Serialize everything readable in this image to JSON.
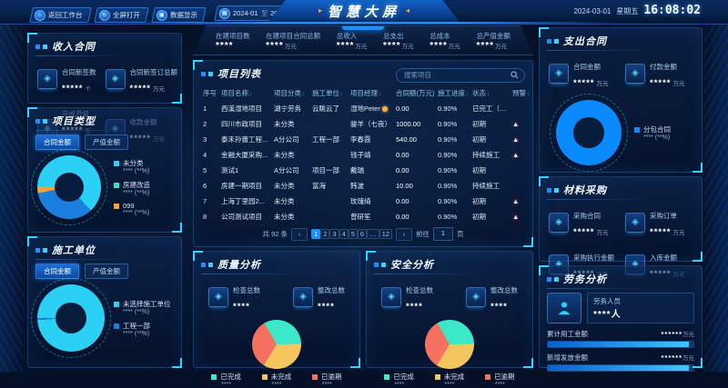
{
  "header": {
    "buttons": [
      {
        "label": "返回工作台",
        "glyph": "⌂"
      },
      {
        "label": "全屏打开",
        "glyph": "↻"
      },
      {
        "label": "数据显示",
        "glyph": "▣"
      }
    ],
    "date_range": {
      "glyph": "▦",
      "start": "2024-01",
      "separator": "至",
      "end": "2024-03"
    },
    "title": "智慧大屏",
    "title_arrow_left": "▸",
    "title_arrow_right": "◂",
    "clock": {
      "date": "2024-03-01",
      "weekday": "星期五",
      "time": "16:08:02"
    }
  },
  "kpis": [
    {
      "label": "在建项目数",
      "value": "****",
      "unit": ""
    },
    {
      "label": "在建项目合同总额",
      "value": "****",
      "unit": "万元"
    },
    {
      "label": "总收入",
      "value": "****",
      "unit": "万元"
    },
    {
      "label": "总支出",
      "value": "****",
      "unit": "万元"
    },
    {
      "label": "总成本",
      "value": "****",
      "unit": "万元"
    },
    {
      "label": "总产值金额",
      "value": "****",
      "unit": "万元"
    }
  ],
  "left": {
    "income": {
      "title": "收入合同",
      "cards": [
        {
          "glyph": "◈",
          "label": "合同新签数",
          "value": "*****",
          "unit": "个"
        },
        {
          "glyph": "◈",
          "label": "合同新签订总额",
          "value": "*****",
          "unit": "万元"
        },
        {
          "glyph": "◈",
          "label": "完成产值",
          "value": "*****",
          "unit": "万元"
        },
        {
          "glyph": "◈",
          "label": "收款金额",
          "value": "*****",
          "unit": "万元"
        }
      ]
    },
    "project_type": {
      "title": "项目类型",
      "tabs": [
        {
          "label": "合同金额",
          "active": true
        },
        {
          "label": "产值金额"
        }
      ],
      "donut": {
        "from": -90,
        "slices": [
          {
            "color": "#2bd0f5",
            "pct": 63
          },
          {
            "color": "#1b7fe0",
            "pct": 34
          },
          {
            "color": "#f0a43c",
            "pct": 3
          }
        ]
      },
      "legend": [
        {
          "label": "未分类",
          "value": "****",
          "pct": "(**%)",
          "color": "#2bd0f5"
        },
        {
          "label": "房建改造",
          "value": "****",
          "pct": "(**%)",
          "color": "#36e2c4"
        },
        {
          "label": "099",
          "value": "****",
          "pct": "(**%)",
          "color": "#f0a43c"
        }
      ]
    },
    "construction_unit": {
      "title": "施工单位",
      "tabs": [
        {
          "label": "合同金额",
          "active": true
        },
        {
          "label": "产值金额"
        }
      ],
      "donut": {
        "from": -90,
        "slices": [
          {
            "color": "#2bd0f5",
            "pct": 99
          },
          {
            "color": "#1b7fe0",
            "pct": 1
          }
        ]
      },
      "legend": [
        {
          "label": "未选择施工单位",
          "value": "****",
          "pct": "(**%)",
          "color": "#2bd0f5"
        },
        {
          "label": "工程一部",
          "value": "****",
          "pct": "(**%)",
          "color": "#1b7fe0"
        }
      ]
    }
  },
  "project_list": {
    "title": "项目列表",
    "search_placeholder": "搜索项目",
    "columns": [
      {
        "label": "序号",
        "sort": ""
      },
      {
        "label": "项目名称",
        "sort": "↕"
      },
      {
        "label": "项目分类",
        "sort": "↕"
      },
      {
        "label": "施工单位",
        "sort": "↕"
      },
      {
        "label": "项目经理",
        "sort": "↕"
      },
      {
        "label": "合同额(万元)",
        "sort": "↕"
      },
      {
        "label": "施工进度",
        "sort": "↕"
      },
      {
        "label": "状态",
        "sort": "↕"
      },
      {
        "label": "预警",
        "sort": "↕"
      }
    ],
    "rows": [
      {
        "idx": "1",
        "name": "西溪湿地项目",
        "category": "湖宁劳务",
        "unit": "云眺云了",
        "manager": "湿地Peter",
        "has_badge": true,
        "amount": "0.00",
        "progress": "0.90%",
        "status": "已完工（质保...",
        "warning": ""
      },
      {
        "idx": "2",
        "name": "四川市政项目",
        "category": "未分类",
        "unit": "",
        "manager": "骏羊（七夜）",
        "has_badge": false,
        "amount": "1000.00",
        "progress": "0.90%",
        "status": "初期",
        "warning": "▲"
      },
      {
        "idx": "3",
        "name": "泰禾孙蕾工程...",
        "category": "A分公司",
        "unit": "工程一部",
        "manager": "李春霞",
        "has_badge": false,
        "amount": "540.00",
        "progress": "0.90%",
        "status": "初期",
        "warning": "▲"
      },
      {
        "idx": "4",
        "name": "金融大厦采购...",
        "category": "未分类",
        "unit": "",
        "manager": "钱子靖",
        "has_badge": false,
        "amount": "0.00",
        "progress": "0.90%",
        "status": "持续施工",
        "warning": "▲"
      },
      {
        "idx": "5",
        "name": "测试1",
        "category": "A分公司",
        "unit": "项目一部",
        "manager": "戴瑞",
        "has_badge": false,
        "amount": "0.00",
        "progress": "0.90%",
        "status": "初期",
        "warning": ""
      },
      {
        "idx": "6",
        "name": "房建一期项目",
        "category": "未分类",
        "unit": "富海",
        "manager": "韩波",
        "has_badge": false,
        "amount": "10.00",
        "progress": "0.90%",
        "status": "持续施工",
        "warning": ""
      },
      {
        "idx": "7",
        "name": "上海丁里园2...",
        "category": "未分类",
        "unit": "",
        "manager": "玫瑰绮",
        "has_badge": false,
        "amount": "0.00",
        "progress": "0.90%",
        "status": "初期",
        "warning": "▲"
      },
      {
        "idx": "8",
        "name": "公司测试项目",
        "category": "未分类",
        "unit": "",
        "manager": "曾研笙",
        "has_badge": false,
        "amount": "0.00",
        "progress": "0.90%",
        "status": "初期",
        "warning": "▲"
      }
    ],
    "pagination": {
      "total": "共 92 条",
      "prev": "‹",
      "next": "›",
      "goto_label": "前往",
      "page_label": "页",
      "goto_value": "1",
      "pages": [
        {
          "label": "1",
          "current": true
        },
        {
          "label": "2"
        },
        {
          "label": "3"
        },
        {
          "label": "4"
        },
        {
          "label": "5"
        },
        {
          "label": "6"
        },
        {
          "label": "…"
        },
        {
          "label": "12"
        }
      ]
    }
  },
  "quality": {
    "title": "质量分析",
    "cards": [
      {
        "glyph": "◈",
        "label": "检查总数",
        "value": "****"
      },
      {
        "glyph": "◈",
        "label": "整改总数",
        "value": "****"
      }
    ],
    "pie": {
      "from": -30,
      "slices": [
        {
          "color": "#3be8c8",
          "pct": 33
        },
        {
          "color": "#f5c65d",
          "pct": 34
        },
        {
          "color": "#f5705f",
          "pct": 33
        }
      ]
    },
    "legend": [
      {
        "label": "已完成",
        "value": "****",
        "color": "#3be8c8"
      },
      {
        "label": "未完成",
        "value": "****",
        "color": "#f5c65d"
      },
      {
        "label": "已逾期",
        "value": "****",
        "color": "#f5705f"
      }
    ]
  },
  "safety": {
    "title": "安全分析",
    "cards": [
      {
        "glyph": "◈",
        "label": "检查总数",
        "value": "****"
      },
      {
        "glyph": "◈",
        "label": "整改总数",
        "value": "****"
      }
    ],
    "pie": {
      "from": -30,
      "slices": [
        {
          "color": "#3be8c8",
          "pct": 33
        },
        {
          "color": "#f5c65d",
          "pct": 34
        },
        {
          "color": "#f5705f",
          "pct": 33
        }
      ]
    },
    "legend": [
      {
        "label": "已完成",
        "value": "****",
        "color": "#3be8c8"
      },
      {
        "label": "未完成",
        "value": "****",
        "color": "#f5c65d"
      },
      {
        "label": "已逾期",
        "value": "****",
        "color": "#f5705f"
      }
    ]
  },
  "right": {
    "expense": {
      "title": "支出合同",
      "cards": [
        {
          "glyph": "◈",
          "label": "合同金额",
          "value": "*****",
          "unit": "万元"
        },
        {
          "glyph": "◈",
          "label": "付款金额",
          "value": "*****",
          "unit": "万元"
        }
      ],
      "donut": {
        "from": -90,
        "slices": [
          {
            "color": "#0a8aff",
            "pct": 100
          }
        ]
      },
      "legend": [
        {
          "label": "分包合同",
          "value": "****",
          "pct": "(**%)",
          "color": "#0a8aff"
        }
      ]
    },
    "material": {
      "title": "材料采购",
      "cards": [
        {
          "glyph": "◈",
          "label": "采购合同",
          "value": "*****",
          "unit": "万元"
        },
        {
          "glyph": "◈",
          "label": "采购订单",
          "value": "*****",
          "unit": "万元"
        },
        {
          "glyph": "◈",
          "label": "采购执行金额",
          "value": "*****",
          "unit": "万元"
        },
        {
          "glyph": "◈",
          "label": "入库金额",
          "value": "*****",
          "unit": "万元"
        }
      ]
    },
    "labor": {
      "title": "劳务分析",
      "person": {
        "label": "劳务人员",
        "value": "****",
        "unit": "人"
      },
      "bars": [
        {
          "label": "累计用工金额",
          "value": "******",
          "unit": "万元",
          "fill": 97
        },
        {
          "label": "新增发放金额",
          "value": "******",
          "unit": "万元",
          "fill": 97
        }
      ]
    }
  }
}
